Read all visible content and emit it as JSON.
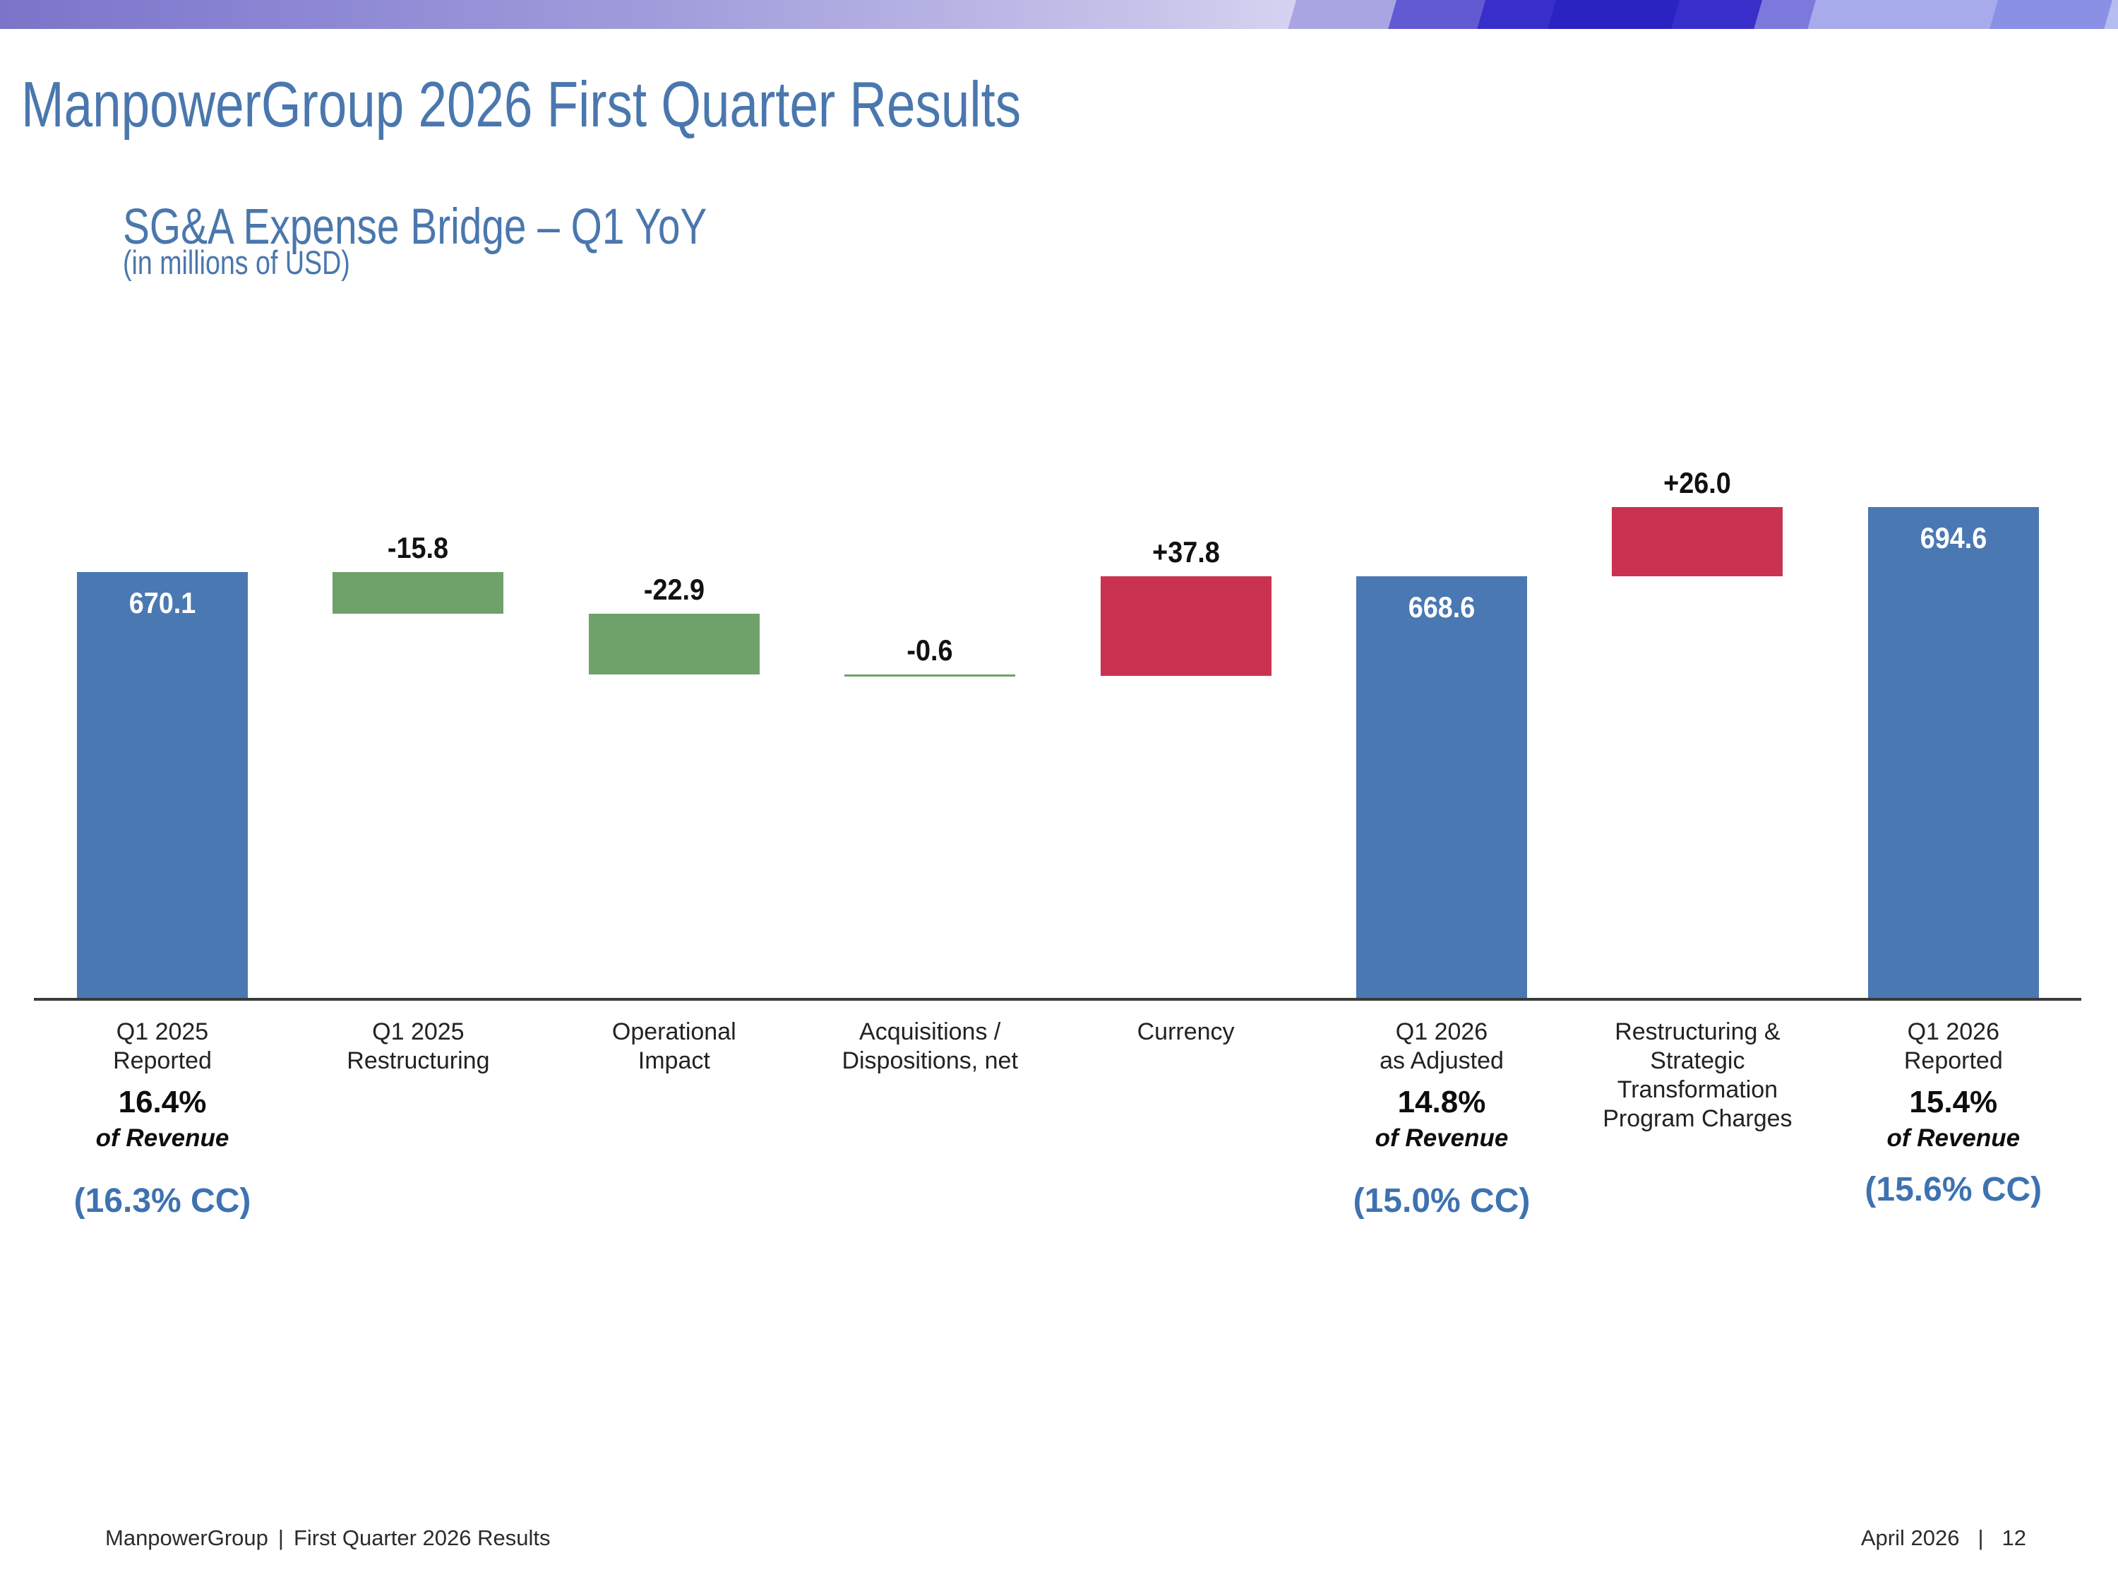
{
  "slide": {
    "title": "ManpowerGroup 2026 First Quarter Results",
    "subtitle": "SG&A Expense Bridge – Q1 YoY",
    "units_note": "(in millions of USD)"
  },
  "footer": {
    "left_brand": "ManpowerGroup",
    "separator": "|",
    "left_title": "First Quarter 2026 Results",
    "right_date": "April 2026",
    "right_page": "12"
  },
  "colors": {
    "title_blue": "#4a77ad",
    "bar_blue": "#4a78b2",
    "bar_green": "#6fa16b",
    "bar_red": "#c93350",
    "cc_blue": "#3e72b0",
    "axis_gray": "#3a3a3a",
    "banner_shapes": [
      "#a9a5e3",
      "#625ad2",
      "#382fca",
      "#2b23c1",
      "#7c78dc",
      "#a7abec",
      "#8a90e3",
      "#b5bcf0"
    ]
  },
  "chart_data": {
    "type": "bar",
    "subtype": "waterfall",
    "title": "SG&A Expense Bridge – Q1 YoY",
    "units": "millions of USD",
    "ylabel": "",
    "xlabel": "",
    "grid": false,
    "legend": "none",
    "ylim": [
      509.3,
      760
    ],
    "categories": [
      "Q1 2025 Reported",
      "Q1 2025 Restructuring",
      "Operational Impact",
      "Acquisitions / Dispositions, net",
      "Currency",
      "Q1 2026 as Adjusted",
      "Restructuring & Strategic Transformation Program Charges",
      "Q1 2026 Reported"
    ],
    "bars": [
      {
        "id": "q1-2025-reported",
        "kind": "total",
        "value": 670.1,
        "display": "670.1",
        "color": "blue",
        "label_lines": [
          "Q1 2025",
          "Reported"
        ],
        "pct": "16.4%",
        "pct_note": "of Revenue",
        "cc": "(16.3% CC)"
      },
      {
        "id": "q1-2025-restructuring",
        "kind": "delta",
        "value": -15.8,
        "display": "-15.8",
        "color": "green",
        "label_lines": [
          "Q1 2025",
          "Restructuring"
        ]
      },
      {
        "id": "operational-impact",
        "kind": "delta",
        "value": -22.9,
        "display": "-22.9",
        "color": "green",
        "label_lines": [
          "Operational",
          "Impact"
        ]
      },
      {
        "id": "acquisitions-dispositions-net",
        "kind": "delta",
        "value": -0.6,
        "display": "-0.6",
        "color": "green",
        "label_lines": [
          "Acquisitions /",
          "Dispositions, net"
        ]
      },
      {
        "id": "currency",
        "kind": "delta",
        "value": 37.8,
        "display": "+37.8",
        "color": "red",
        "label_lines": [
          "Currency"
        ]
      },
      {
        "id": "q1-2026-as-adjusted",
        "kind": "total",
        "value": 668.6,
        "display": "668.6",
        "color": "blue",
        "label_lines": [
          "Q1 2026",
          "as Adjusted"
        ],
        "pct": "14.8%",
        "pct_note": "of Revenue",
        "cc": "(15.0% CC)"
      },
      {
        "id": "restructuring-strategic-transformation-program-charges",
        "kind": "delta",
        "value": 26.0,
        "display": "+26.0",
        "color": "red",
        "label_lines": [
          "Restructuring &",
          "Strategic",
          "Transformation",
          "Program Charges"
        ]
      },
      {
        "id": "q1-2026-reported",
        "kind": "total",
        "value": 694.6,
        "display": "694.6",
        "color": "blue",
        "label_lines": [
          "Q1 2026",
          "Reported"
        ],
        "pct": "15.4%",
        "pct_note": "of Revenue",
        "cc": "(15.6% CC)"
      }
    ]
  }
}
